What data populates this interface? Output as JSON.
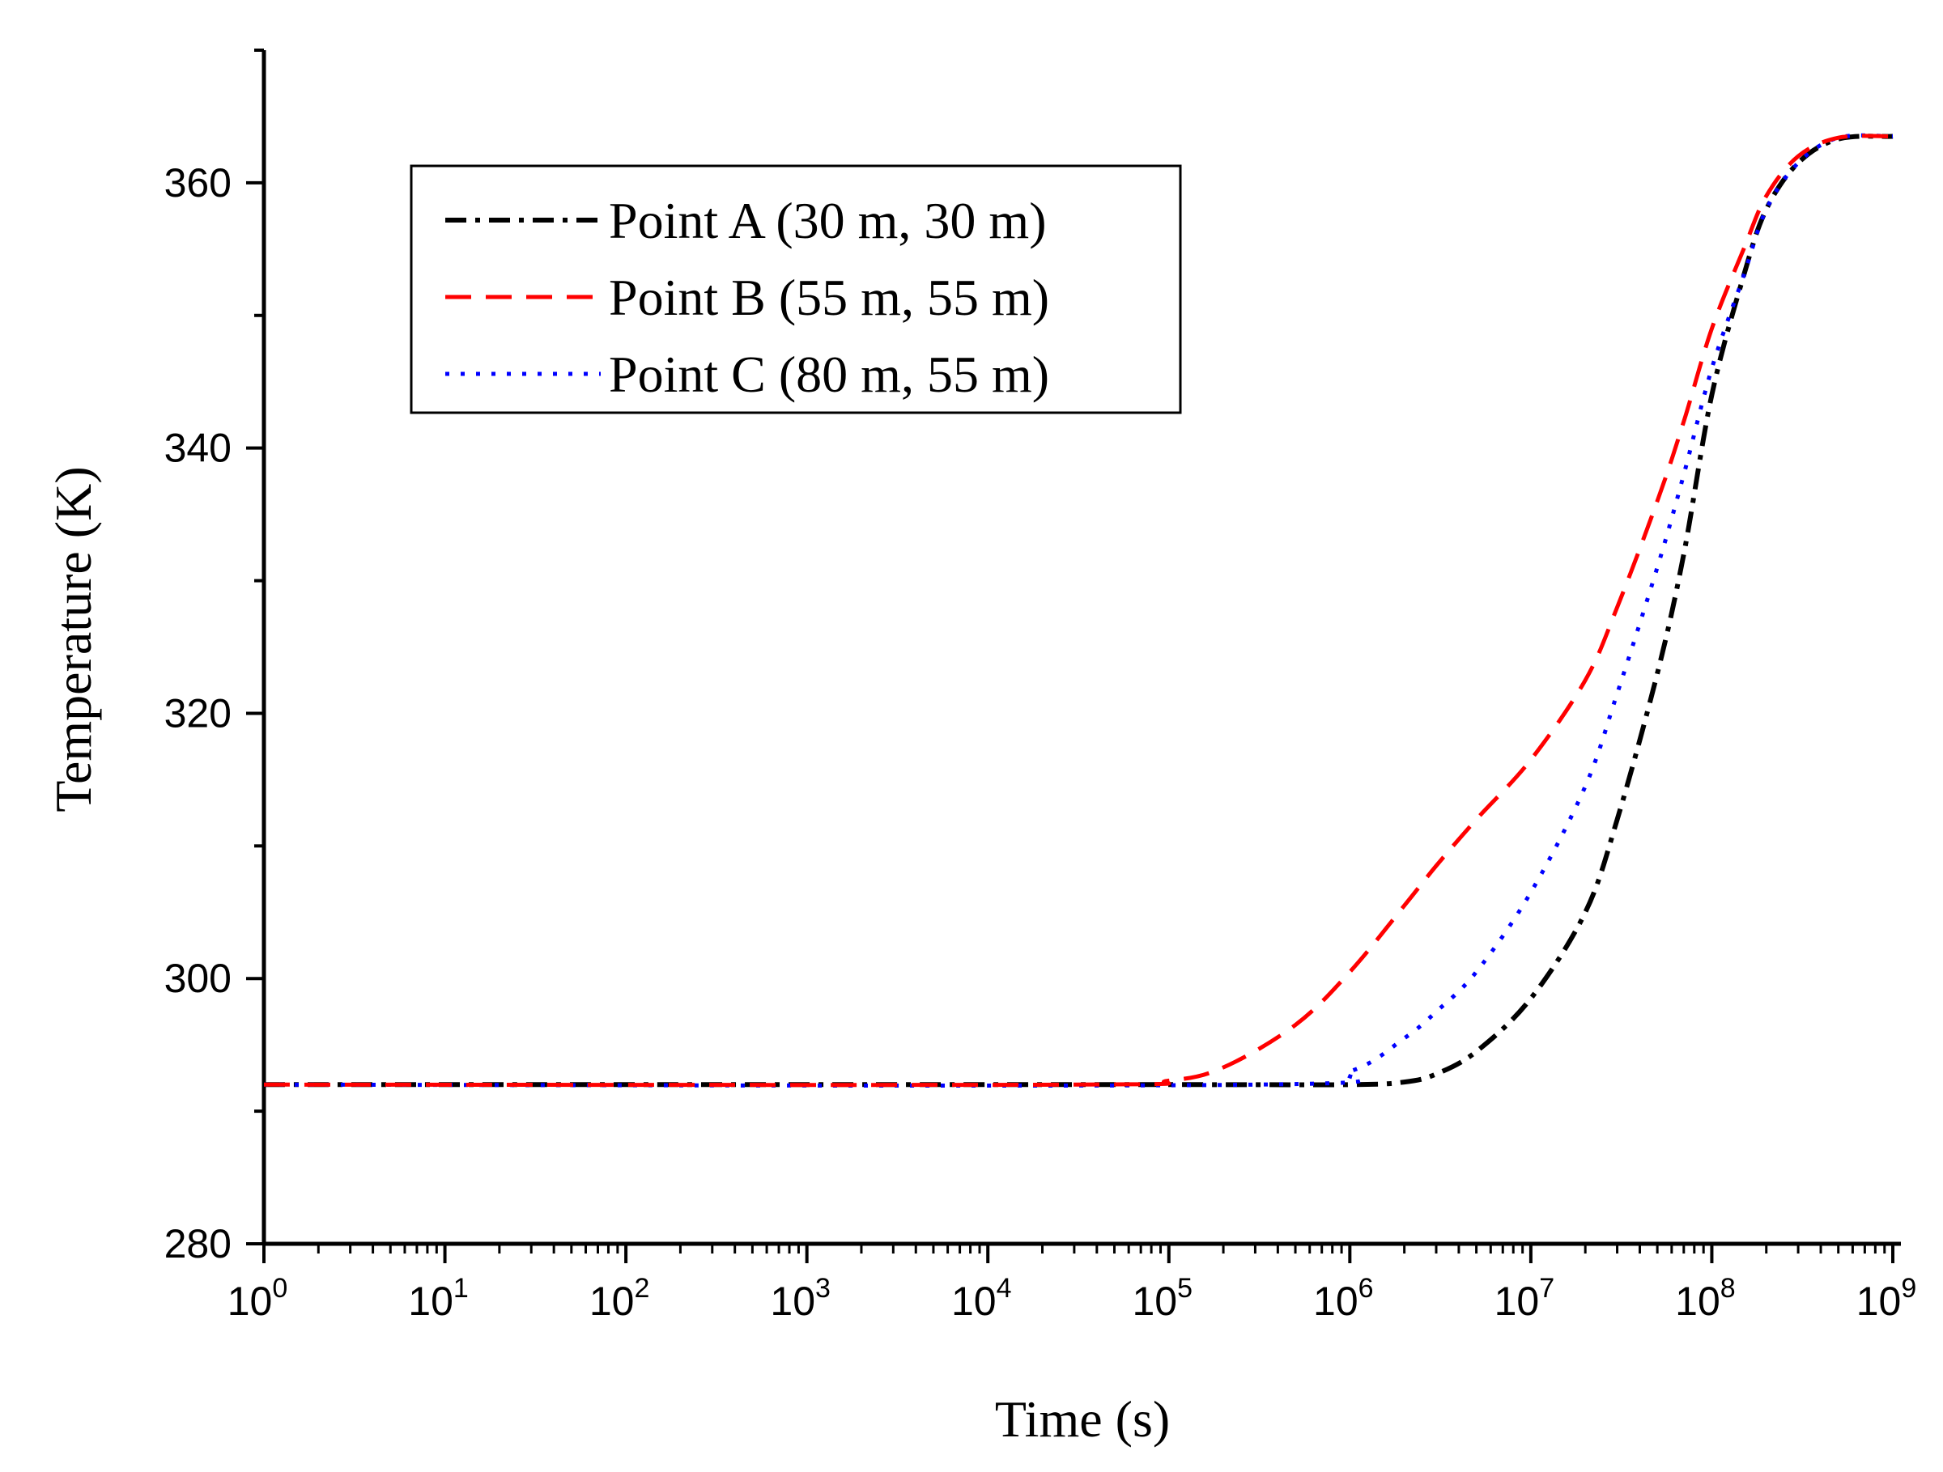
{
  "chart_data": {
    "type": "line",
    "title": "",
    "xlabel": "Time (s)",
    "ylabel": "Temperature (K)",
    "xscale": "log",
    "xlim": [
      1,
      1000000000
    ],
    "ylim": [
      280,
      370
    ],
    "grid": false,
    "legend_position": "top-left",
    "x_ticks": [
      {
        "base": "10",
        "exp": "0"
      },
      {
        "base": "10",
        "exp": "1"
      },
      {
        "base": "10",
        "exp": "2"
      },
      {
        "base": "10",
        "exp": "3"
      },
      {
        "base": "10",
        "exp": "4"
      },
      {
        "base": "10",
        "exp": "5"
      },
      {
        "base": "10",
        "exp": "6"
      },
      {
        "base": "10",
        "exp": "7"
      },
      {
        "base": "10",
        "exp": "8"
      },
      {
        "base": "10",
        "exp": "9"
      }
    ],
    "y_ticks": [
      "280",
      "300",
      "320",
      "340",
      "360"
    ],
    "series": [
      {
        "name": "Point A (30 m, 30 m)",
        "color": "#000000",
        "style": "dash-dot",
        "points": [
          [
            1,
            292
          ],
          [
            100000,
            292
          ],
          [
            1000000,
            292
          ],
          [
            2000000,
            292.2
          ],
          [
            3000000,
            292.8
          ],
          [
            5000000,
            294.5
          ],
          [
            10000000,
            298.5
          ],
          [
            20000000,
            305
          ],
          [
            30000000,
            312
          ],
          [
            50000000,
            323
          ],
          [
            70000000,
            332
          ],
          [
            100000000,
            344
          ],
          [
            150000000,
            353
          ],
          [
            200000000,
            358
          ],
          [
            300000000,
            361.5
          ],
          [
            500000000,
            363.3
          ],
          [
            1000000000,
            363.5
          ]
        ]
      },
      {
        "name": "Point B (55 m, 55 m)",
        "color": "#ff0000",
        "style": "dashed",
        "points": [
          [
            1,
            292
          ],
          [
            30000,
            292
          ],
          [
            100000,
            292.3
          ],
          [
            200000,
            293.3
          ],
          [
            500000,
            296.5
          ],
          [
            1000000,
            300.5
          ],
          [
            2000000,
            305.5
          ],
          [
            3000000,
            308.5
          ],
          [
            5000000,
            312
          ],
          [
            10000000,
            316.5
          ],
          [
            20000000,
            322.5
          ],
          [
            30000000,
            328
          ],
          [
            50000000,
            336
          ],
          [
            70000000,
            342
          ],
          [
            100000000,
            349
          ],
          [
            150000000,
            355
          ],
          [
            200000000,
            359
          ],
          [
            300000000,
            362
          ],
          [
            500000000,
            363.4
          ],
          [
            1000000000,
            363.5
          ]
        ]
      },
      {
        "name": "Point C (80 m, 55 m)",
        "color": "#0000ff",
        "style": "dotted",
        "points": [
          [
            1,
            292
          ],
          [
            300000,
            292
          ],
          [
            1000000,
            293
          ],
          [
            2000000,
            295.5
          ],
          [
            3000000,
            297.5
          ],
          [
            5000000,
            300.5
          ],
          [
            10000000,
            306.5
          ],
          [
            20000000,
            314.5
          ],
          [
            30000000,
            321.5
          ],
          [
            50000000,
            331
          ],
          [
            70000000,
            338
          ],
          [
            100000000,
            346
          ],
          [
            150000000,
            353
          ],
          [
            200000000,
            358
          ],
          [
            300000000,
            361.5
          ],
          [
            500000000,
            363.4
          ],
          [
            1000000000,
            363.5
          ]
        ]
      }
    ]
  }
}
